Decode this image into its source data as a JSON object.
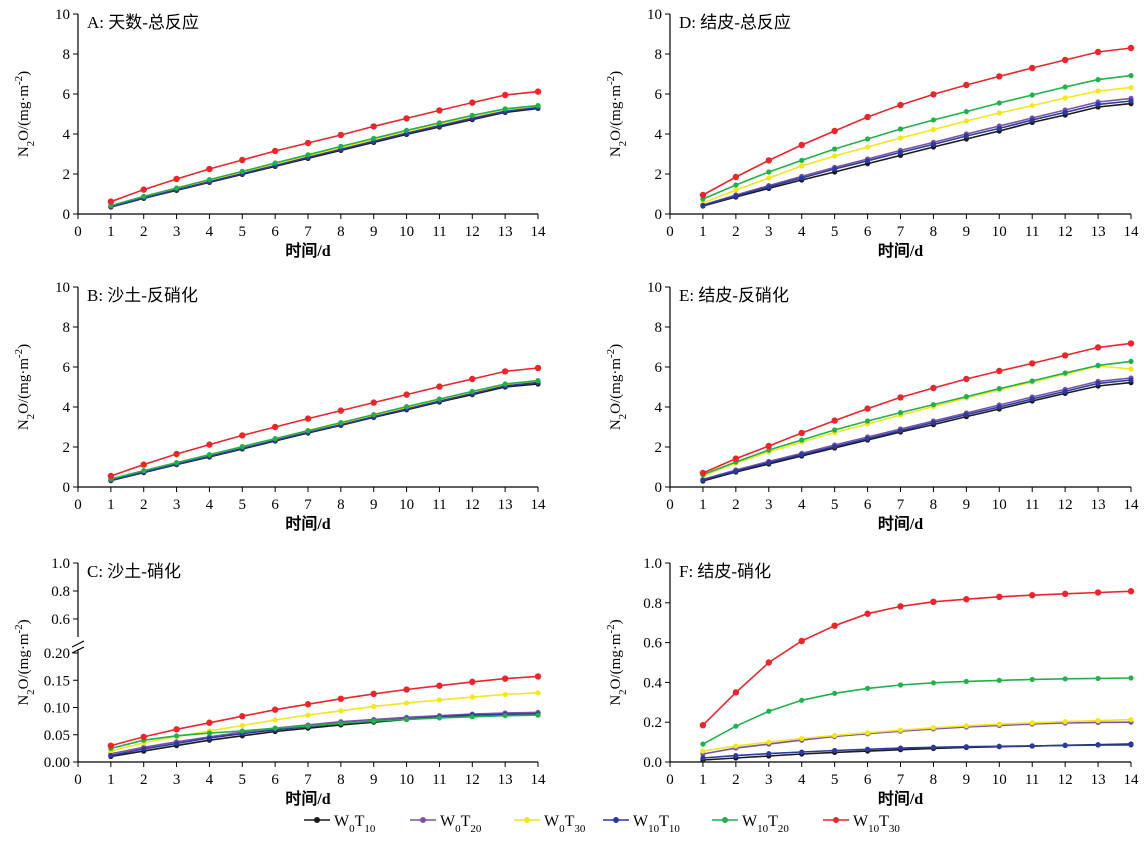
{
  "legend": {
    "items": [
      {
        "main": "W",
        "sub1": "0",
        "mid": "T",
        "sub2": "10",
        "color": "#1a1a1a"
      },
      {
        "main": "W",
        "sub1": "0",
        "mid": "T",
        "sub2": "20",
        "color": "#7b52ab"
      },
      {
        "main": "W",
        "sub1": "0",
        "mid": "T",
        "sub2": "30",
        "color": "#f2e61c"
      },
      {
        "main": "W",
        "sub1": "10",
        "mid": "T",
        "sub2": "10",
        "color": "#2b3a9e"
      },
      {
        "main": "W",
        "sub1": "10",
        "mid": "T",
        "sub2": "20",
        "color": "#22b04b"
      },
      {
        "main": "W",
        "sub1": "10",
        "mid": "T",
        "sub2": "30",
        "color": "#e8262b"
      }
    ]
  },
  "chart_data": [
    {
      "type": "line",
      "title": "A: 天数-总反应",
      "xlabel": "时间/d",
      "ylabel": {
        "main": "N",
        "sub": "2",
        "rest": "O/(mg·m",
        "sup": "-2",
        "close": ")"
      },
      "xlim": [
        0,
        14
      ],
      "ylim": [
        0,
        10
      ],
      "yticks": [
        0,
        2,
        4,
        6,
        8,
        10
      ],
      "ytick_labels": [
        "0",
        "2",
        "4",
        "6",
        "8",
        "10"
      ],
      "x": [
        1,
        2,
        3,
        4,
        5,
        6,
        7,
        8,
        9,
        10,
        11,
        12,
        13,
        14
      ],
      "series": [
        {
          "values": [
            0.35,
            0.78,
            1.18,
            1.58,
            1.98,
            2.38,
            2.78,
            3.18,
            3.58,
            3.98,
            4.35,
            4.72,
            5.08,
            5.28
          ]
        },
        {
          "values": [
            0.38,
            0.82,
            1.23,
            1.63,
            2.04,
            2.44,
            2.85,
            3.25,
            3.65,
            4.05,
            4.42,
            4.8,
            5.15,
            5.35
          ]
        },
        {
          "values": [
            0.4,
            0.85,
            1.26,
            1.67,
            2.08,
            2.49,
            2.9,
            3.31,
            3.72,
            4.12,
            4.5,
            4.88,
            5.22,
            5.4
          ]
        },
        {
          "values": [
            0.37,
            0.8,
            1.21,
            1.61,
            2.02,
            2.42,
            2.83,
            3.23,
            3.63,
            4.03,
            4.4,
            4.77,
            5.12,
            5.32
          ]
        },
        {
          "values": [
            0.42,
            0.88,
            1.3,
            1.72,
            2.13,
            2.55,
            2.96,
            3.38,
            3.78,
            4.18,
            4.56,
            4.93,
            5.26,
            5.42
          ]
        },
        {
          "values": [
            0.62,
            1.22,
            1.75,
            2.25,
            2.7,
            3.15,
            3.55,
            3.95,
            4.38,
            4.78,
            5.18,
            5.57,
            5.95,
            6.12
          ]
        }
      ]
    },
    {
      "type": "line",
      "title": "D: 结皮-总反应",
      "xlabel": "时间/d",
      "ylabel": {
        "main": "N",
        "sub": "2",
        "rest": "O/(mg·m",
        "sup": "-2",
        "close": ")"
      },
      "xlim": [
        0,
        14
      ],
      "ylim": [
        0,
        10
      ],
      "yticks": [
        0,
        2,
        4,
        6,
        8,
        10
      ],
      "ytick_labels": [
        "0",
        "2",
        "4",
        "6",
        "8",
        "10"
      ],
      "x": [
        1,
        2,
        3,
        4,
        5,
        6,
        7,
        8,
        9,
        10,
        11,
        12,
        13,
        14
      ],
      "series": [
        {
          "values": [
            0.4,
            0.85,
            1.28,
            1.7,
            2.1,
            2.52,
            2.93,
            3.35,
            3.75,
            4.15,
            4.58,
            4.95,
            5.35,
            5.52
          ]
        },
        {
          "values": [
            0.45,
            0.95,
            1.42,
            1.88,
            2.33,
            2.75,
            3.18,
            3.58,
            4.0,
            4.4,
            4.8,
            5.2,
            5.6,
            5.78
          ]
        },
        {
          "values": [
            0.55,
            1.2,
            1.8,
            2.4,
            2.9,
            3.35,
            3.8,
            4.22,
            4.65,
            5.05,
            5.42,
            5.8,
            6.15,
            6.32
          ]
        },
        {
          "values": [
            0.43,
            0.9,
            1.36,
            1.8,
            2.25,
            2.66,
            3.08,
            3.48,
            3.9,
            4.28,
            4.7,
            5.08,
            5.48,
            5.65
          ]
        },
        {
          "values": [
            0.75,
            1.45,
            2.1,
            2.68,
            3.25,
            3.75,
            4.25,
            4.7,
            5.12,
            5.55,
            5.95,
            6.35,
            6.72,
            6.92
          ]
        },
        {
          "values": [
            0.95,
            1.85,
            2.68,
            3.45,
            4.15,
            4.85,
            5.45,
            5.98,
            6.45,
            6.88,
            7.3,
            7.7,
            8.1,
            8.3
          ]
        }
      ]
    },
    {
      "type": "line",
      "title": "B: 沙土-反硝化",
      "xlabel": "时间/d",
      "ylabel": {
        "main": "N",
        "sub": "2",
        "rest": "O/(mg·m",
        "sup": "-2",
        "close": ")"
      },
      "xlim": [
        0,
        14
      ],
      "ylim": [
        0,
        10
      ],
      "yticks": [
        0,
        2,
        4,
        6,
        8,
        10
      ],
      "ytick_labels": [
        "0",
        "2",
        "4",
        "6",
        "8",
        "10"
      ],
      "x": [
        1,
        2,
        3,
        4,
        5,
        6,
        7,
        8,
        9,
        10,
        11,
        12,
        13,
        14
      ],
      "series": [
        {
          "values": [
            0.32,
            0.72,
            1.12,
            1.5,
            1.9,
            2.3,
            2.7,
            3.08,
            3.48,
            3.86,
            4.25,
            4.62,
            5.0,
            5.15
          ]
        },
        {
          "values": [
            0.35,
            0.76,
            1.16,
            1.55,
            1.95,
            2.35,
            2.75,
            3.14,
            3.54,
            3.93,
            4.32,
            4.7,
            5.08,
            5.25
          ]
        },
        {
          "values": [
            0.37,
            0.79,
            1.19,
            1.59,
            1.99,
            2.39,
            2.79,
            3.18,
            3.58,
            3.97,
            4.36,
            4.74,
            5.12,
            5.3
          ]
        },
        {
          "values": [
            0.34,
            0.74,
            1.14,
            1.53,
            1.93,
            2.33,
            2.73,
            3.11,
            3.51,
            3.9,
            4.29,
            4.67,
            5.05,
            5.22
          ]
        },
        {
          "values": [
            0.4,
            0.82,
            1.22,
            1.62,
            2.02,
            2.42,
            2.82,
            3.22,
            3.62,
            4.02,
            4.4,
            4.78,
            5.15,
            5.32
          ]
        },
        {
          "values": [
            0.55,
            1.12,
            1.65,
            2.12,
            2.58,
            3.0,
            3.42,
            3.82,
            4.22,
            4.62,
            5.02,
            5.4,
            5.78,
            5.95
          ]
        }
      ]
    },
    {
      "type": "line",
      "title": "E: 结皮-反硝化",
      "xlabel": "时间/d",
      "ylabel": {
        "main": "N",
        "sub": "2",
        "rest": "O/(mg·m",
        "sup": "-2",
        "close": ")"
      },
      "xlim": [
        0,
        14
      ],
      "ylim": [
        0,
        10
      ],
      "yticks": [
        0,
        2,
        4,
        6,
        8,
        10
      ],
      "ytick_labels": [
        "0",
        "2",
        "4",
        "6",
        "8",
        "10"
      ],
      "x": [
        1,
        2,
        3,
        4,
        5,
        6,
        7,
        8,
        9,
        10,
        11,
        12,
        13,
        14
      ],
      "series": [
        {
          "values": [
            0.3,
            0.75,
            1.15,
            1.55,
            1.95,
            2.35,
            2.75,
            3.12,
            3.52,
            3.9,
            4.3,
            4.68,
            5.05,
            5.22
          ]
        },
        {
          "values": [
            0.38,
            0.85,
            1.28,
            1.68,
            2.1,
            2.5,
            2.9,
            3.3,
            3.7,
            4.1,
            4.5,
            4.88,
            5.28,
            5.45
          ]
        },
        {
          "values": [
            0.55,
            1.2,
            1.75,
            2.25,
            2.72,
            3.15,
            3.6,
            4.02,
            4.45,
            4.85,
            5.25,
            5.65,
            6.05,
            5.9
          ]
        },
        {
          "values": [
            0.35,
            0.8,
            1.22,
            1.62,
            2.02,
            2.42,
            2.82,
            3.22,
            3.62,
            4.0,
            4.4,
            4.78,
            5.18,
            5.35
          ]
        },
        {
          "values": [
            0.62,
            1.25,
            1.85,
            2.35,
            2.85,
            3.3,
            3.72,
            4.12,
            4.52,
            4.92,
            5.3,
            5.7,
            6.08,
            6.28
          ]
        },
        {
          "values": [
            0.7,
            1.42,
            2.05,
            2.7,
            3.32,
            3.92,
            4.48,
            4.95,
            5.4,
            5.8,
            6.18,
            6.58,
            6.98,
            7.18
          ]
        }
      ]
    },
    {
      "type": "line",
      "title": "C: 沙土-硝化",
      "xlabel": "时间/d",
      "ylabel": {
        "main": "N",
        "sub": "2",
        "rest": "O/(mg·m",
        "sup": "-2",
        "close": ")"
      },
      "xlim": [
        0,
        14
      ],
      "ylim": [
        0,
        1.0
      ],
      "axis_break": {
        "lower": [
          0,
          0.2
        ],
        "upper": [
          0.5,
          1.0
        ]
      },
      "yticks": [
        0,
        0.05,
        0.1,
        0.15,
        0.2,
        0.6,
        0.8,
        1.0
      ],
      "ytick_labels": [
        "0.00",
        "0.05",
        "0.10",
        "0.15",
        "0.20",
        "0.6",
        "0.8",
        "1.0"
      ],
      "x": [
        1,
        2,
        3,
        4,
        5,
        6,
        7,
        8,
        9,
        10,
        11,
        12,
        13,
        14
      ],
      "series": [
        {
          "values": [
            0.01,
            0.02,
            0.03,
            0.04,
            0.048,
            0.056,
            0.062,
            0.068,
            0.073,
            0.078,
            0.082,
            0.086,
            0.088,
            0.09
          ]
        },
        {
          "values": [
            0.015,
            0.027,
            0.037,
            0.046,
            0.055,
            0.062,
            0.068,
            0.074,
            0.078,
            0.082,
            0.085,
            0.088,
            0.09,
            0.091
          ]
        },
        {
          "values": [
            0.02,
            0.035,
            0.047,
            0.057,
            0.067,
            0.077,
            0.086,
            0.094,
            0.102,
            0.108,
            0.114,
            0.119,
            0.124,
            0.127
          ]
        },
        {
          "values": [
            0.012,
            0.024,
            0.034,
            0.044,
            0.052,
            0.059,
            0.065,
            0.071,
            0.075,
            0.079,
            0.083,
            0.086,
            0.087,
            0.088
          ]
        },
        {
          "values": [
            0.025,
            0.04,
            0.048,
            0.053,
            0.057,
            0.062,
            0.066,
            0.071,
            0.075,
            0.078,
            0.081,
            0.083,
            0.085,
            0.086
          ]
        },
        {
          "values": [
            0.03,
            0.046,
            0.06,
            0.072,
            0.084,
            0.096,
            0.106,
            0.116,
            0.125,
            0.133,
            0.14,
            0.147,
            0.153,
            0.157
          ]
        }
      ]
    },
    {
      "type": "line",
      "title": "F: 结皮-硝化",
      "xlabel": "时间/d",
      "ylabel": {
        "main": "N",
        "sub": "2",
        "rest": "O/(mg·m",
        "sup": "-2",
        "close": ")"
      },
      "xlim": [
        0,
        14
      ],
      "ylim": [
        0,
        1.0
      ],
      "yticks": [
        0,
        0.2,
        0.4,
        0.6,
        0.8,
        1.0
      ],
      "ytick_labels": [
        "0.0",
        "0.2",
        "0.4",
        "0.6",
        "0.8",
        "1.0"
      ],
      "x": [
        1,
        2,
        3,
        4,
        5,
        6,
        7,
        8,
        9,
        10,
        11,
        12,
        13,
        14
      ],
      "series": [
        {
          "values": [
            0.01,
            0.02,
            0.03,
            0.04,
            0.048,
            0.055,
            0.062,
            0.068,
            0.073,
            0.077,
            0.08,
            0.084,
            0.087,
            0.09
          ]
        },
        {
          "values": [
            0.04,
            0.07,
            0.09,
            0.11,
            0.128,
            0.142,
            0.155,
            0.166,
            0.176,
            0.184,
            0.191,
            0.196,
            0.199,
            0.2
          ]
        },
        {
          "values": [
            0.055,
            0.08,
            0.1,
            0.118,
            0.133,
            0.147,
            0.16,
            0.172,
            0.182,
            0.19,
            0.197,
            0.203,
            0.208,
            0.213
          ]
        },
        {
          "values": [
            0.02,
            0.032,
            0.042,
            0.05,
            0.058,
            0.064,
            0.07,
            0.074,
            0.077,
            0.079,
            0.081,
            0.083,
            0.085,
            0.086
          ]
        },
        {
          "values": [
            0.09,
            0.18,
            0.255,
            0.31,
            0.345,
            0.37,
            0.387,
            0.398,
            0.405,
            0.41,
            0.415,
            0.418,
            0.42,
            0.422
          ]
        },
        {
          "values": [
            0.185,
            0.35,
            0.5,
            0.608,
            0.685,
            0.745,
            0.782,
            0.805,
            0.818,
            0.83,
            0.838,
            0.845,
            0.852,
            0.858
          ]
        }
      ]
    }
  ]
}
